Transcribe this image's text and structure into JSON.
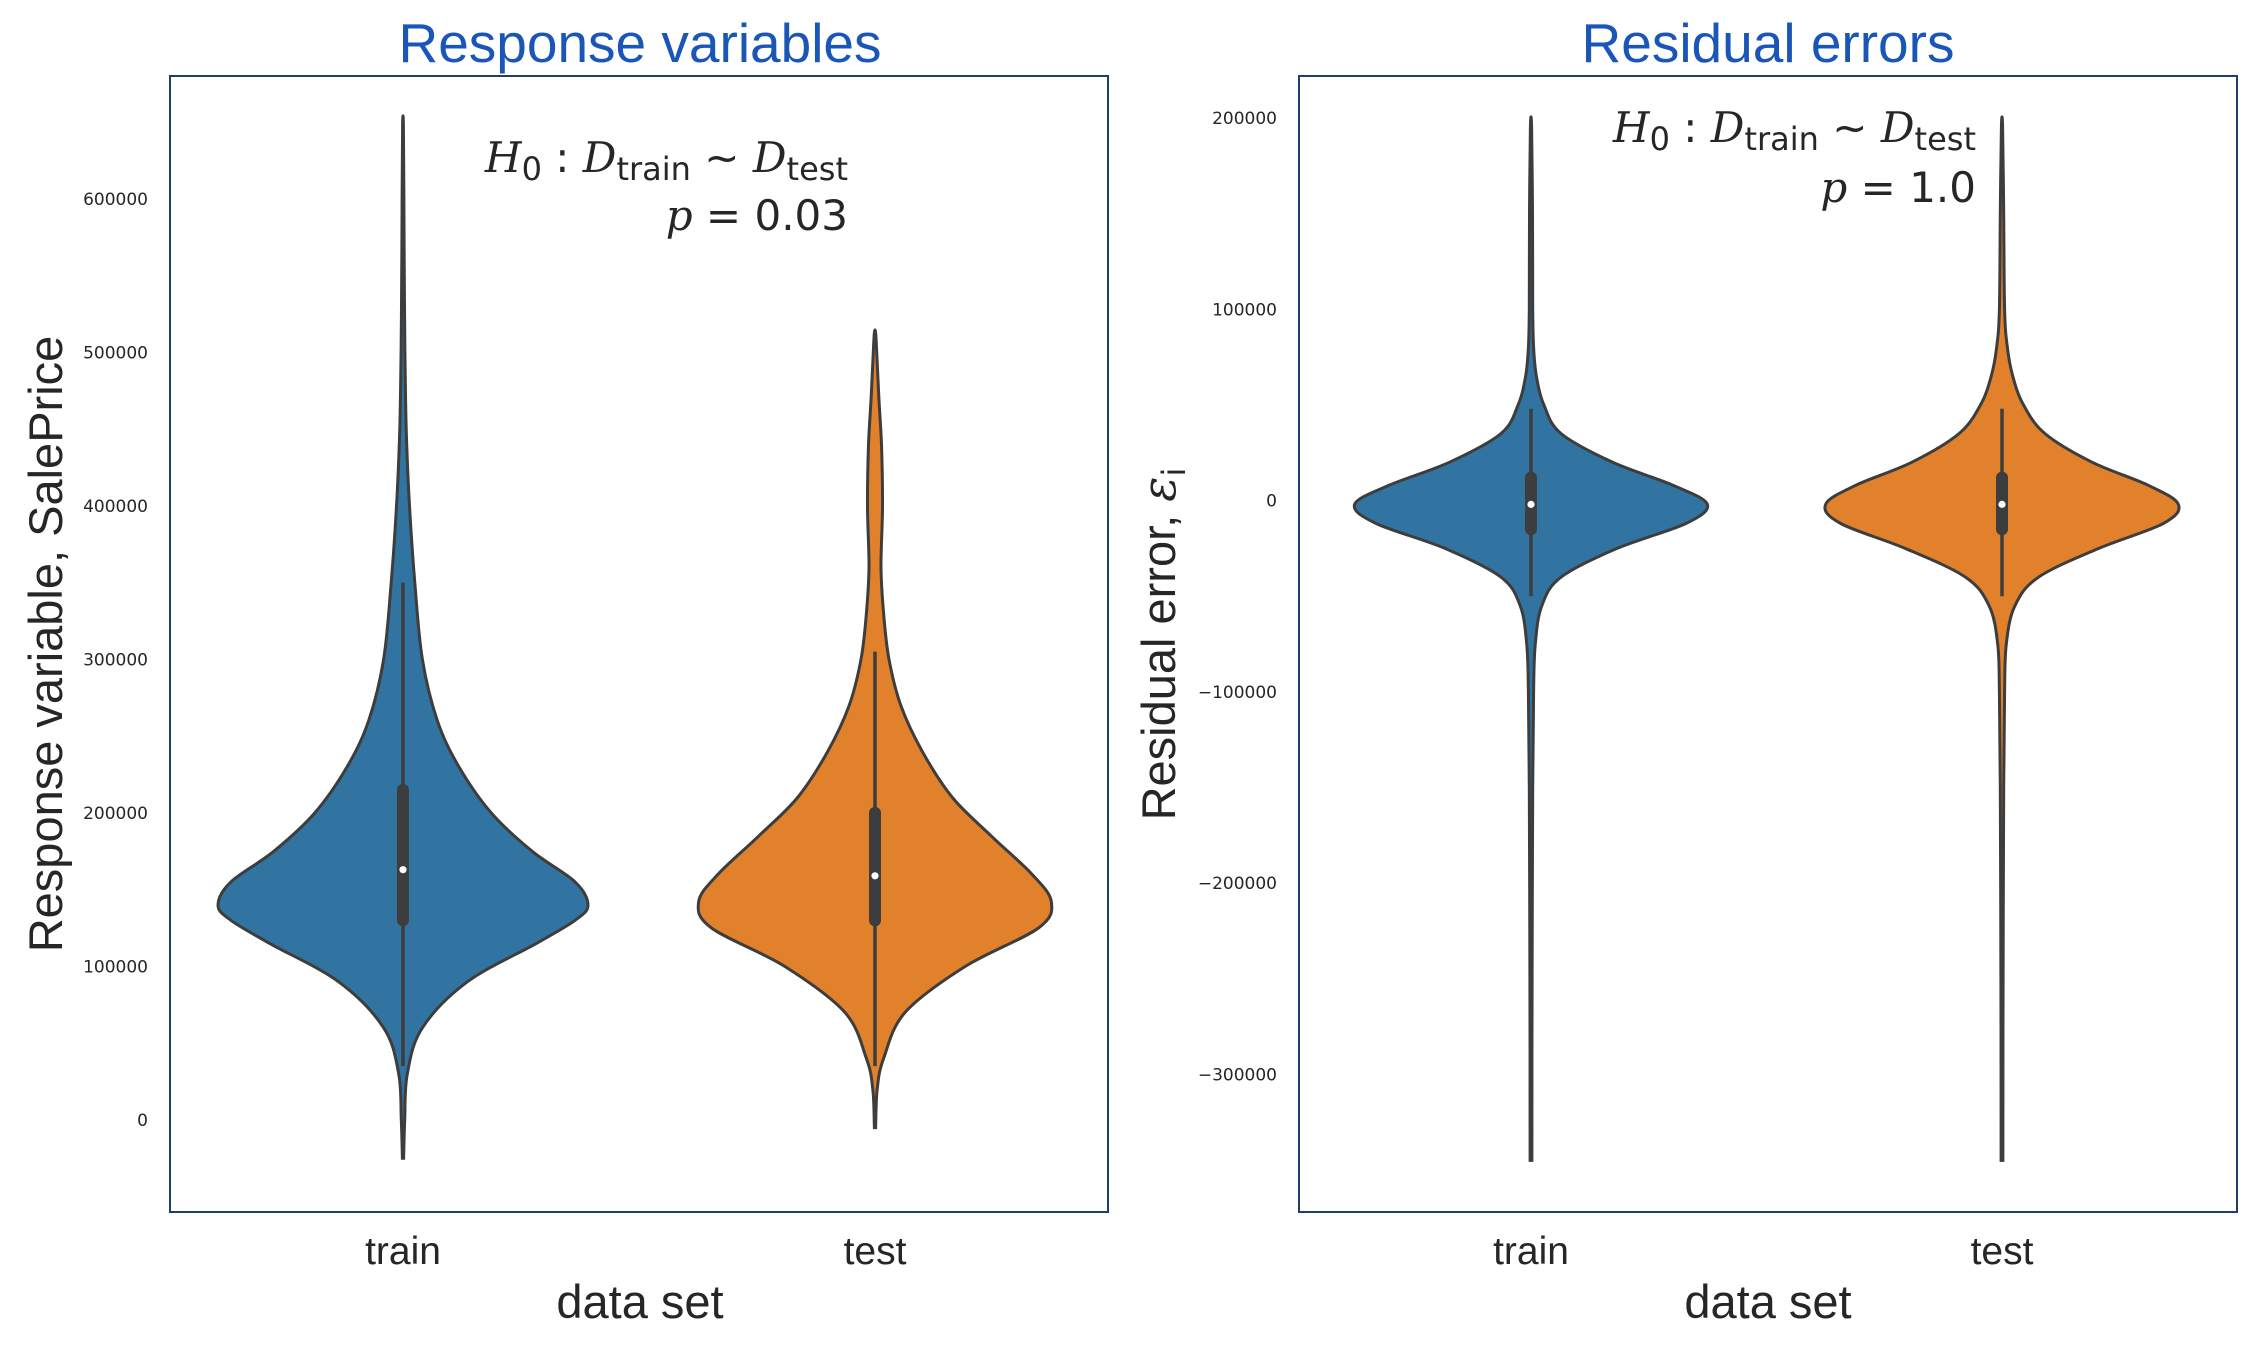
{
  "chart_data": [
    {
      "type": "violin",
      "title": "Response variables",
      "xlabel": "data set",
      "ylabel": "Response variable, SalePrice",
      "categories": [
        "train",
        "test"
      ],
      "ylim": [
        -60000,
        680000
      ],
      "yticks": [
        0,
        100000,
        200000,
        300000,
        400000,
        500000,
        600000
      ],
      "ytick_labels": [
        "0",
        "100000",
        "200000",
        "300000",
        "400000",
        "500000",
        "600000"
      ],
      "colors": [
        "#3274a1",
        "#e1812c"
      ],
      "grid": false,
      "annotation": {
        "hypothesis_prefix": "H",
        "hypothesis_sub": "0",
        "dist": "D",
        "train_sub": "train",
        "test_sub": "test",
        "p_label": "p",
        "p_value": "0.03"
      },
      "series": [
        {
          "category": "train",
          "min": -25000,
          "max": 648000,
          "whisker_low": 35000,
          "whisker_high": 350000,
          "q1": 130000,
          "median": 163000,
          "q3": 215000,
          "density": [
            [
              -25000,
              0.003
            ],
            [
              0,
              0.008
            ],
            [
              30000,
              0.02
            ],
            [
              60000,
              0.09
            ],
            [
              90000,
              0.3
            ],
            [
              115000,
              0.62
            ],
            [
              130000,
              0.8
            ],
            [
              140000,
              0.86
            ],
            [
              155000,
              0.8
            ],
            [
              175000,
              0.6
            ],
            [
              200000,
              0.41
            ],
            [
              230000,
              0.26
            ],
            [
              260000,
              0.16
            ],
            [
              300000,
              0.09
            ],
            [
              350000,
              0.055
            ],
            [
              400000,
              0.03
            ],
            [
              450000,
              0.015
            ],
            [
              500000,
              0.009
            ],
            [
              550000,
              0.006
            ],
            [
              600000,
              0.004
            ],
            [
              648000,
              0.002
            ]
          ]
        },
        {
          "category": "test",
          "min": -5000,
          "max": 513000,
          "whisker_low": 35000,
          "whisker_high": 305000,
          "q1": 130000,
          "median": 159000,
          "q3": 200000,
          "density": [
            [
              -5000,
              0.003
            ],
            [
              20000,
              0.01
            ],
            [
              40000,
              0.04
            ],
            [
              70000,
              0.14
            ],
            [
              100000,
              0.42
            ],
            [
              125000,
              0.76
            ],
            [
              142000,
              0.82
            ],
            [
              160000,
              0.73
            ],
            [
              185000,
              0.54
            ],
            [
              210000,
              0.36
            ],
            [
              240000,
              0.22
            ],
            [
              270000,
              0.12
            ],
            [
              300000,
              0.065
            ],
            [
              330000,
              0.04
            ],
            [
              360000,
              0.028
            ],
            [
              400000,
              0.035
            ],
            [
              440000,
              0.03
            ],
            [
              470000,
              0.018
            ],
            [
              500000,
              0.008
            ],
            [
              513000,
              0.003
            ]
          ]
        }
      ]
    },
    {
      "type": "violin",
      "title": "Residual errors",
      "xlabel": "data set",
      "ylabel": "Residual error,",
      "ylabel_symbol": "ε",
      "ylabel_sub": "i",
      "categories": [
        "train",
        "test"
      ],
      "ylim": [
        -372000,
        222000
      ],
      "yticks": [
        -300000,
        -200000,
        -100000,
        0,
        100000,
        200000
      ],
      "ytick_labels": [
        "−300000",
        "−200000",
        "−100000",
        "0",
        "100000",
        "200000"
      ],
      "colors": [
        "#3274a1",
        "#e1812c"
      ],
      "grid": false,
      "annotation": {
        "hypothesis_prefix": "H",
        "hypothesis_sub": "0",
        "dist": "D",
        "train_sub": "train",
        "test_sub": "test",
        "p_label": "p",
        "p_value": "1.0"
      },
      "series": [
        {
          "category": "train",
          "min": -345000,
          "max": 195000,
          "whisker_low": -50000,
          "whisker_high": 48000,
          "q1": -15000,
          "median": -2000,
          "q3": 12000,
          "density": [
            [
              -345000,
              0.004
            ],
            [
              -250000,
              0.005
            ],
            [
              -150000,
              0.008
            ],
            [
              -100000,
              0.012
            ],
            [
              -75000,
              0.02
            ],
            [
              -55000,
              0.05
            ],
            [
              -40000,
              0.14
            ],
            [
              -25000,
              0.4
            ],
            [
              -12000,
              0.72
            ],
            [
              -2000,
              0.82
            ],
            [
              8000,
              0.66
            ],
            [
              20000,
              0.38
            ],
            [
              35000,
              0.14
            ],
            [
              50000,
              0.06
            ],
            [
              65000,
              0.025
            ],
            [
              80000,
              0.012
            ],
            [
              100000,
              0.008
            ],
            [
              150000,
              0.007
            ],
            [
              195000,
              0.003
            ]
          ]
        },
        {
          "category": "test",
          "min": -345000,
          "max": 195000,
          "whisker_low": -50000,
          "whisker_high": 48000,
          "q1": -15000,
          "median": -2000,
          "q3": 12000,
          "density": [
            [
              -345000,
              0.004
            ],
            [
              -250000,
              0.005
            ],
            [
              -150000,
              0.008
            ],
            [
              -100000,
              0.012
            ],
            [
              -75000,
              0.02
            ],
            [
              -55000,
              0.06
            ],
            [
              -40000,
              0.17
            ],
            [
              -25000,
              0.45
            ],
            [
              -12000,
              0.75
            ],
            [
              -2000,
              0.82
            ],
            [
              8000,
              0.68
            ],
            [
              20000,
              0.42
            ],
            [
              35000,
              0.2
            ],
            [
              50000,
              0.1
            ],
            [
              65000,
              0.05
            ],
            [
              80000,
              0.025
            ],
            [
              100000,
              0.012
            ],
            [
              150000,
              0.008
            ],
            [
              195000,
              0.003
            ]
          ]
        }
      ]
    }
  ]
}
